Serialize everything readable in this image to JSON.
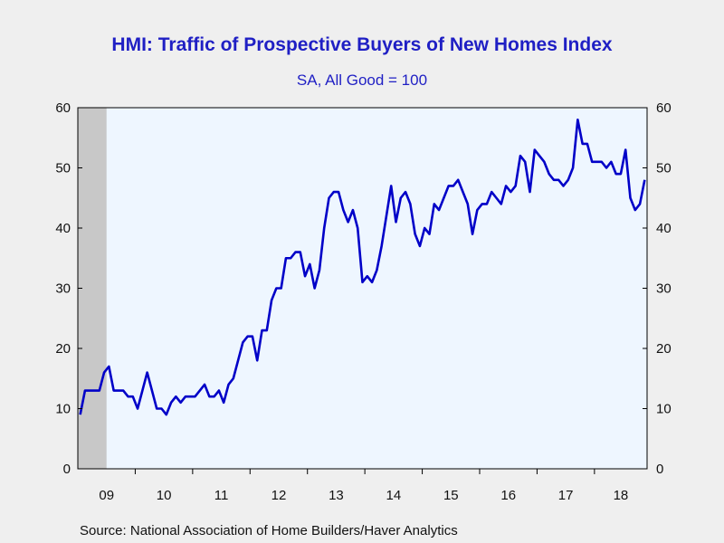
{
  "title": "HMI: Traffic of Prospective Buyers of New Homes Index",
  "subtitle": "SA, All Good = 100",
  "source": "Source:  National Association of Home Builders/Haver Analytics",
  "colors": {
    "line": "#0000c8",
    "plot_background": "#eef6ff",
    "recession_shade": "#c8c8c8",
    "title": "#1f1fc4"
  },
  "chart_data": {
    "type": "line",
    "ylim": [
      0,
      60
    ],
    "y_ticks": [
      0,
      10,
      20,
      30,
      40,
      50,
      60
    ],
    "x_tick_labels": [
      "09",
      "10",
      "11",
      "12",
      "13",
      "14",
      "15",
      "16",
      "17",
      "18"
    ],
    "x_start": "2009-01",
    "x_end": "2018-11",
    "recession_shading": {
      "start": "2009-01",
      "end": "2009-06"
    },
    "grid": false,
    "legend": "none",
    "series": [
      {
        "values": [
          9,
          13,
          13,
          13,
          13,
          16,
          17,
          13,
          13,
          13,
          12,
          12,
          10,
          13,
          16,
          13,
          10,
          10,
          9,
          11,
          12,
          11,
          12,
          12,
          12,
          13,
          14,
          12,
          12,
          13,
          11,
          14,
          15,
          18,
          21,
          22,
          22,
          18,
          23,
          23,
          28,
          30,
          30,
          35,
          35,
          36,
          36,
          32,
          34,
          30,
          33,
          40,
          45,
          46,
          46,
          43,
          41,
          43,
          40,
          31,
          32,
          31,
          33,
          37,
          42,
          47,
          41,
          45,
          46,
          44,
          39,
          37,
          40,
          39,
          44,
          43,
          45,
          47,
          47,
          48,
          46,
          44,
          39,
          43,
          44,
          44,
          46,
          45,
          44,
          47,
          46,
          47,
          52,
          51,
          46,
          53,
          52,
          51,
          49,
          48,
          48,
          47,
          48,
          50,
          58,
          54,
          54,
          51,
          51,
          51,
          50,
          51,
          49,
          49,
          53,
          45,
          43,
          44,
          48
        ]
      }
    ]
  }
}
